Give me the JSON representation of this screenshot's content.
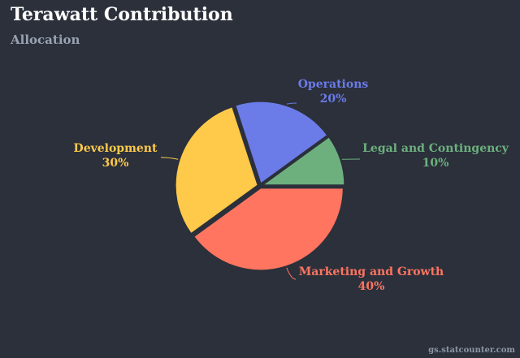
{
  "page": {
    "title": "Terawatt Contribution",
    "subtitle": "Allocation",
    "credit": "gs.statcounter.com"
  },
  "colors": {
    "background": "#2b303b",
    "title": "#ffffff",
    "subtitle": "#9aa3b3",
    "separator": "#2b303b"
  },
  "chart_data": {
    "type": "pie",
    "title": "Terawatt Contribution",
    "subtitle": "Allocation",
    "start_angle_deg": 0,
    "direction": "counterclockwise",
    "slices": [
      {
        "label": "Legal and Contingency",
        "value": 10,
        "display": "10%",
        "color": "#6db07e"
      },
      {
        "label": "Operations",
        "value": 20,
        "display": "20%",
        "color": "#6b7be8"
      },
      {
        "label": "Development",
        "value": 30,
        "display": "30%",
        "color": "#ffc94a"
      },
      {
        "label": "Marketing and Growth",
        "value": 40,
        "display": "40%",
        "color": "#ff7560"
      }
    ]
  }
}
